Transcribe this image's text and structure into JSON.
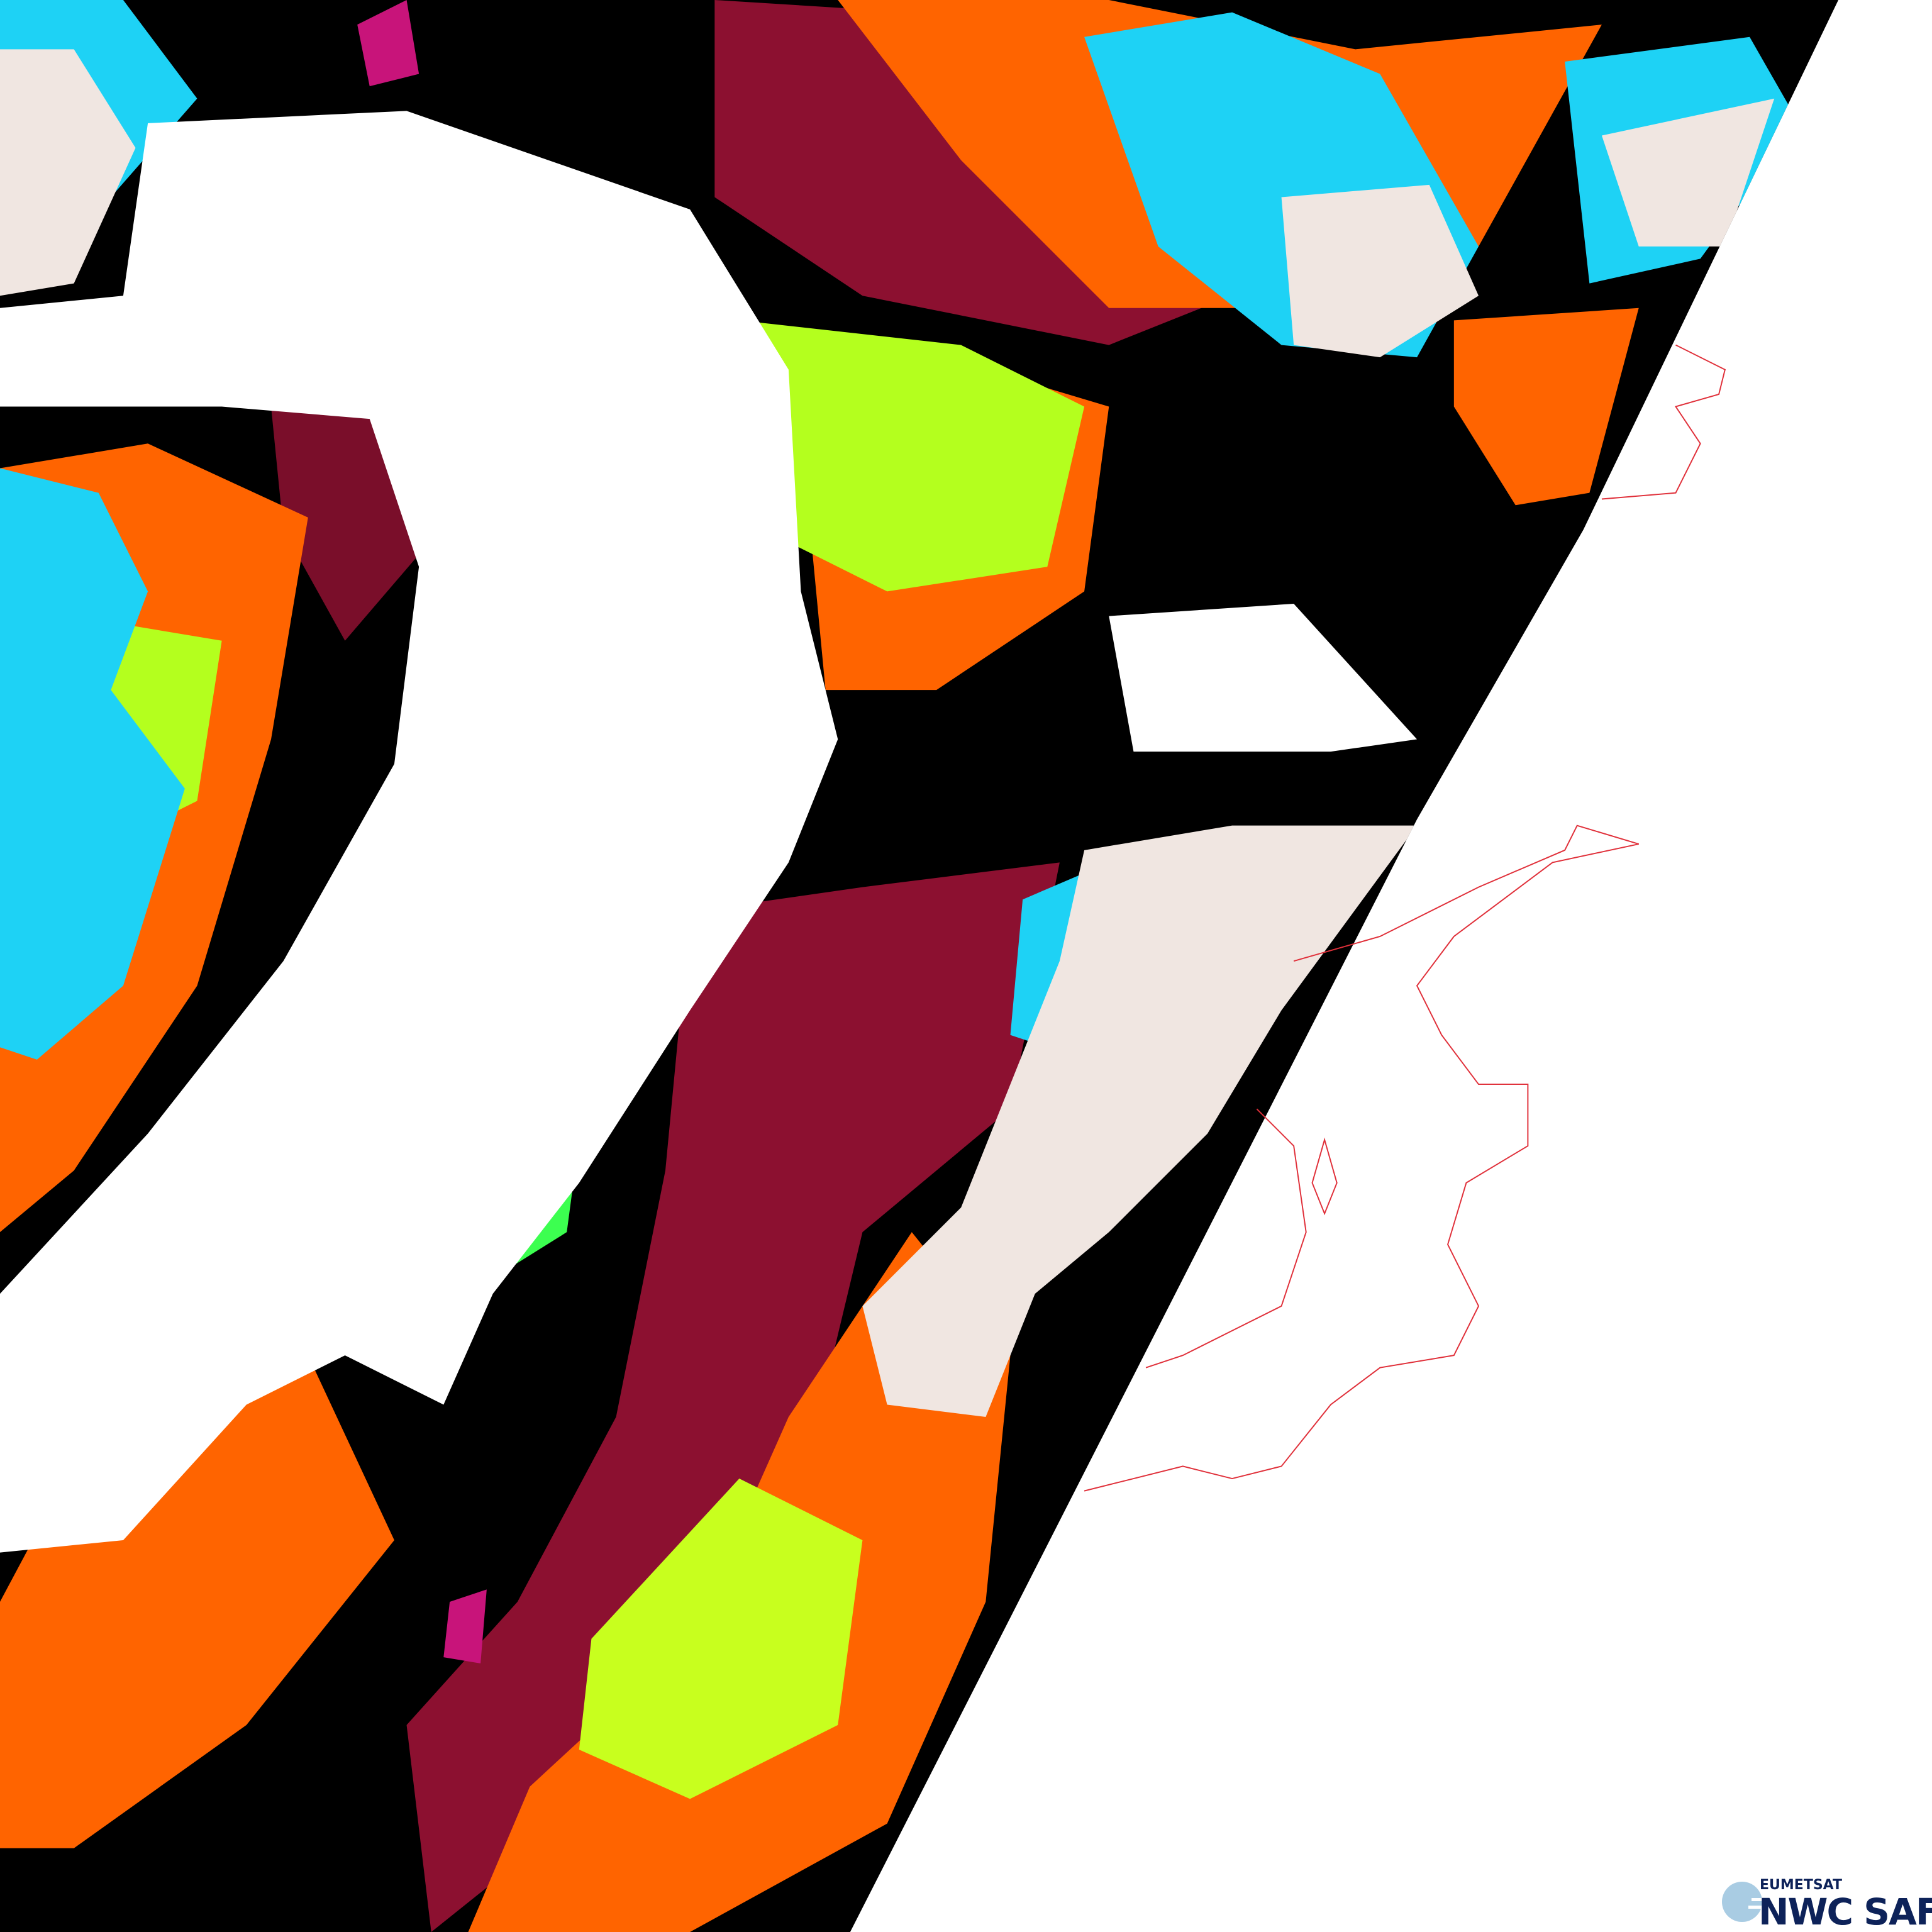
{
  "logo": {
    "org": "EUMETSAT",
    "product": "NWC SAF",
    "colors": {
      "text": "#0d2259",
      "globe": "#a9cce3"
    }
  },
  "map": {
    "coastline_color": "#e0303a",
    "no_data_color": "#ffffff",
    "palette": {
      "clear": "#000000",
      "dark_red": "#8c1030",
      "orange": "#ff6400",
      "yellow_green": "#c8ff1e",
      "green": "#3cff50",
      "cyan": "#1ed2f5",
      "white": "#ffffff",
      "pink_white": "#f0e6e1",
      "magenta": "#c8147a"
    }
  }
}
